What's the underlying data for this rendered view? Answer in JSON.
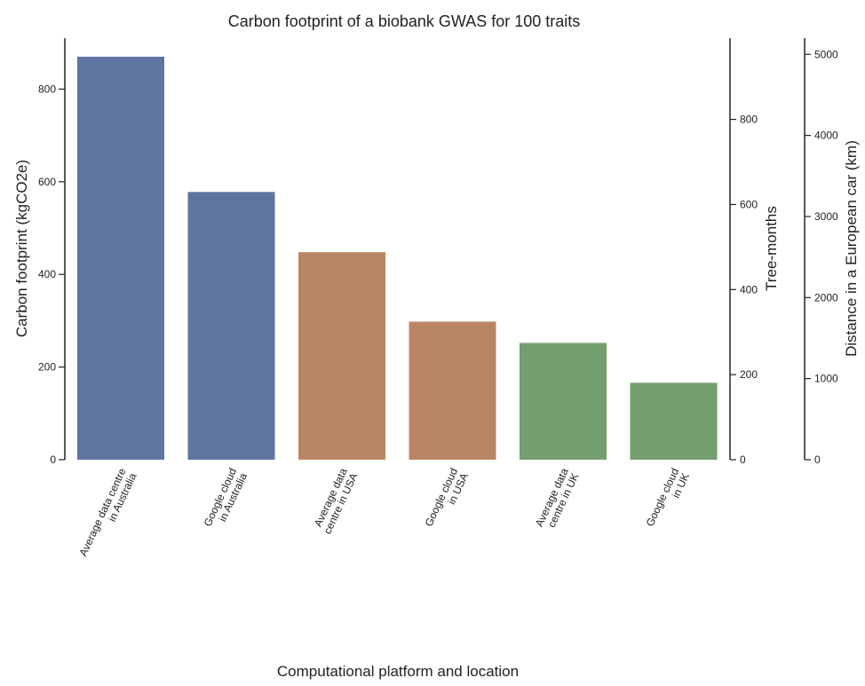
{
  "chart_data": {
    "type": "bar",
    "title": "Carbon footprint of a biobank GWAS for 100 traits",
    "xlabel": "Computational platform and location",
    "ylabel": "Carbon footprint (kgCO2e)",
    "ylim": [
      0,
      910
    ],
    "yticks": [
      0,
      200,
      400,
      600,
      800
    ],
    "categories": [
      [
        "Average data centre",
        "in Australia"
      ],
      [
        "Google cloud",
        "in Australia"
      ],
      [
        "Average data",
        "centre in USA"
      ],
      [
        "Google cloud",
        "in USA"
      ],
      [
        "Average data",
        "centre in UK"
      ],
      [
        "Google cloud",
        "in UK"
      ]
    ],
    "values": [
      870,
      578,
      448,
      298,
      252,
      166
    ],
    "bar_colors": [
      "#5f74a0",
      "#5f74a0",
      "#b98664",
      "#b98664",
      "#739e6d",
      "#739e6d"
    ],
    "secondary_axes": [
      {
        "label": "Tree-months",
        "ticks": [
          0,
          200,
          400,
          600,
          800
        ],
        "lim": [
          0,
          991
        ]
      },
      {
        "label": "Distance in a European car (km)",
        "ticks": [
          0,
          1000,
          2000,
          3000,
          4000,
          5000
        ],
        "lim": [
          0,
          5200
        ]
      }
    ]
  }
}
